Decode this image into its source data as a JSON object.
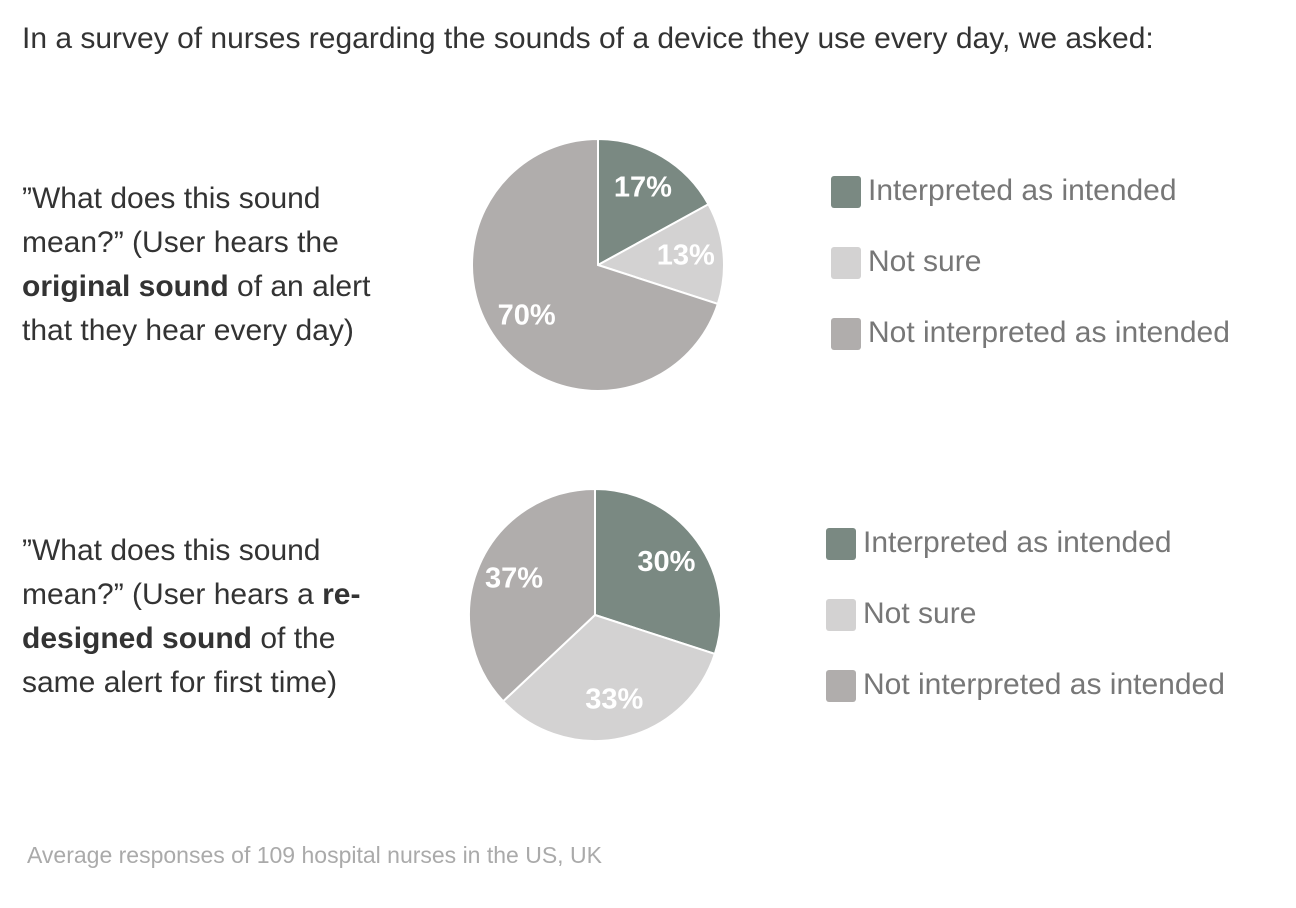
{
  "header": {
    "title": "In a survey of nurses regarding the sounds of a device they use every day, we asked:"
  },
  "chart_data": [
    {
      "type": "pie",
      "question": [
        {
          "text": "”What does this sound mean?” (User hears the ",
          "bold": false
        },
        {
          "text": "original sound",
          "bold": true
        },
        {
          "text": " of an alert that they hear every day)",
          "bold": false
        }
      ],
      "categories": [
        "Interpreted as intended",
        "Not sure",
        "Not interpreted as intended"
      ],
      "values": [
        17,
        13,
        70
      ],
      "value_labels": [
        "17%",
        "13%",
        "70%"
      ],
      "colors": [
        "#7a8982",
        "#d3d2d2",
        "#b0adac"
      ]
    },
    {
      "type": "pie",
      "question": [
        {
          "text": "”What does this sound mean?” (User hears a ",
          "bold": false
        },
        {
          "text": "re-designed sound",
          "bold": true
        },
        {
          "text": " of the same alert for first time)",
          "bold": false
        }
      ],
      "categories": [
        "Interpreted as intended",
        "Not sure",
        "Not interpreted as intended"
      ],
      "values": [
        30,
        33,
        37
      ],
      "value_labels": [
        "30%",
        "33%",
        "37%"
      ],
      "colors": [
        "#7a8982",
        "#d3d2d2",
        "#b0adac"
      ]
    }
  ],
  "footnote": "Average responses of 109 hospital nurses in the US, UK"
}
